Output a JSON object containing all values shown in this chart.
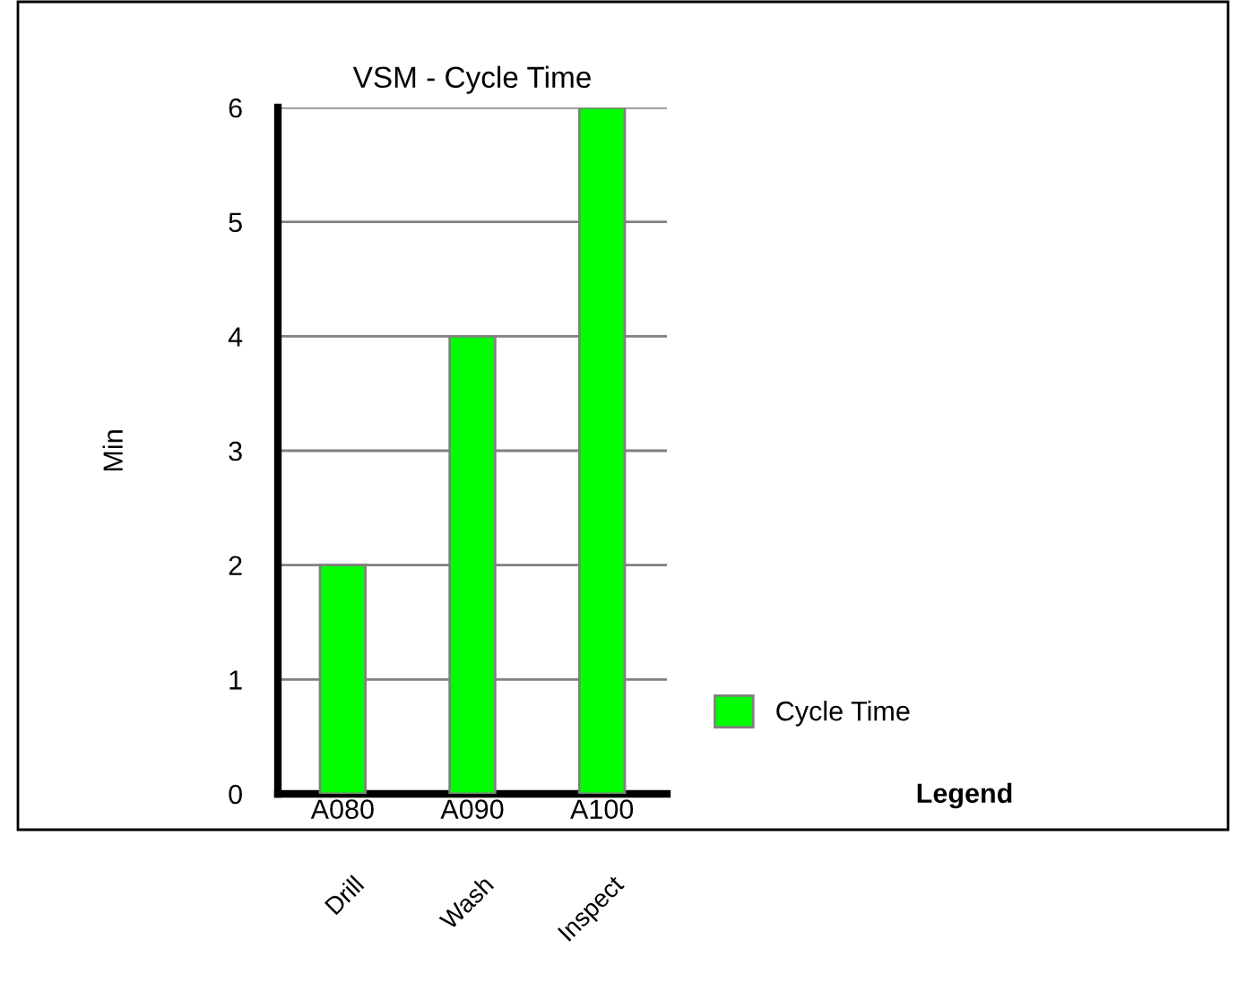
{
  "chart_data": {
    "type": "bar",
    "title": "VSM - Cycle Time",
    "ylabel": "Min",
    "categories": [
      "A080",
      "A090",
      "A100"
    ],
    "series": [
      {
        "name": "Cycle Time",
        "color": "#00ff00",
        "values": [
          2,
          4,
          6
        ]
      }
    ],
    "ylim": [
      0,
      6
    ],
    "yticks": [
      0,
      1,
      2,
      3,
      4,
      5,
      6
    ],
    "grid": "y",
    "legend": "bottom right",
    "legend_title": "Legend",
    "annotations": [
      "Drill",
      "Wash",
      "Inspect"
    ]
  }
}
